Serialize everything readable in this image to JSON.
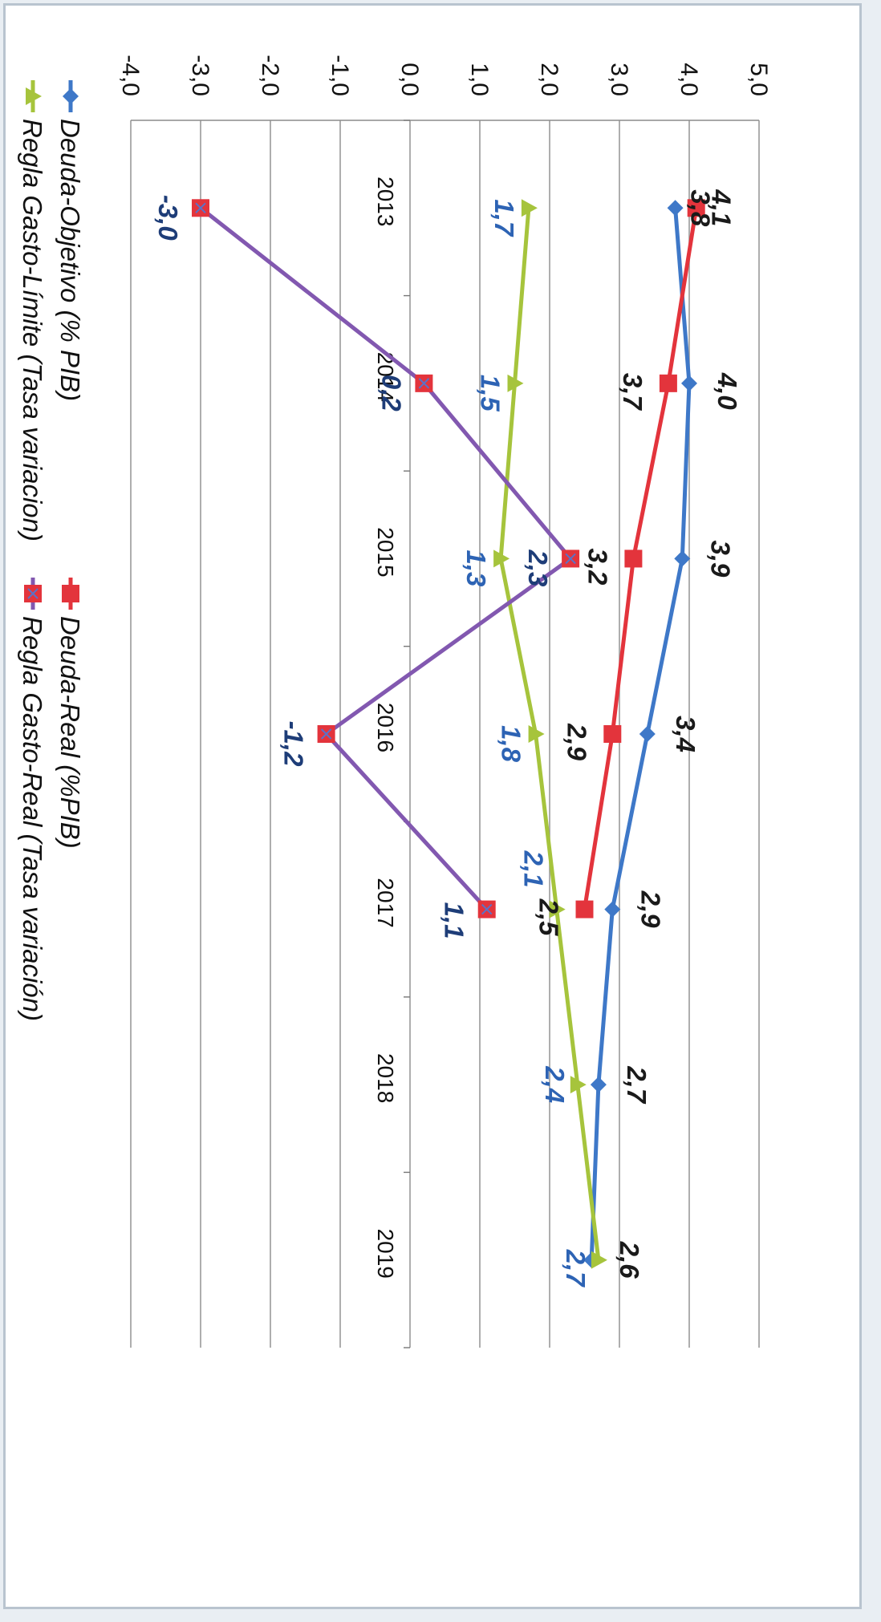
{
  "chart_data": {
    "type": "line",
    "categories": [
      "2013",
      "2014",
      "2015",
      "2016",
      "2017",
      "2018",
      "2019"
    ],
    "ylim": [
      -4.0,
      5.0
    ],
    "yticks": [
      "-4,0",
      "-3,0",
      "-2,0",
      "-1,0",
      "0,0",
      "1,0",
      "2,0",
      "3,0",
      "4,0",
      "5,0"
    ],
    "grid": true,
    "orientation": "rotated-90-clockwise",
    "legend_position": "bottom",
    "series": [
      {
        "name": "Deuda-Objetivo (% PIB)",
        "color": "#3e78c8",
        "marker": "diamond",
        "values": [
          3.8,
          4.0,
          3.9,
          3.4,
          2.9,
          2.7,
          2.6
        ],
        "labels": [
          "3,8",
          "4,0",
          "3,9",
          "3,4",
          "2,9",
          "2,7",
          "2,6"
        ],
        "label_color": "#1a1a1a"
      },
      {
        "name": "Deuda-Real (%PIB)",
        "color": "#e3343c",
        "marker": "square",
        "values": [
          4.1,
          3.7,
          3.2,
          2.9,
          2.5,
          null,
          null
        ],
        "labels": [
          "4,1",
          "3,7",
          "3,2",
          "2,9",
          "2,5",
          "",
          ""
        ],
        "label_color": "#1a1a1a"
      },
      {
        "name": "Regla Gasto-Límite (Tasa variacion)",
        "color": "#a6c43c",
        "marker": "triangle",
        "values": [
          1.7,
          1.5,
          1.3,
          1.8,
          2.1,
          2.4,
          2.7
        ],
        "labels": [
          "1,7",
          "1,5",
          "1,3",
          "1,8",
          "2,1",
          "2,4",
          "2,7"
        ],
        "label_color": "#2d63b4"
      },
      {
        "name": "Regla Gasto-Real (Tasa variación)",
        "color": "#8258b0",
        "marker": "square-x",
        "values": [
          -3.0,
          0.2,
          2.3,
          -1.2,
          1.1,
          null,
          null
        ],
        "labels": [
          "-3,0",
          "0,2",
          "2,3",
          "-1,2",
          "1,1",
          "",
          ""
        ],
        "label_color": "#1e3d78"
      }
    ]
  }
}
